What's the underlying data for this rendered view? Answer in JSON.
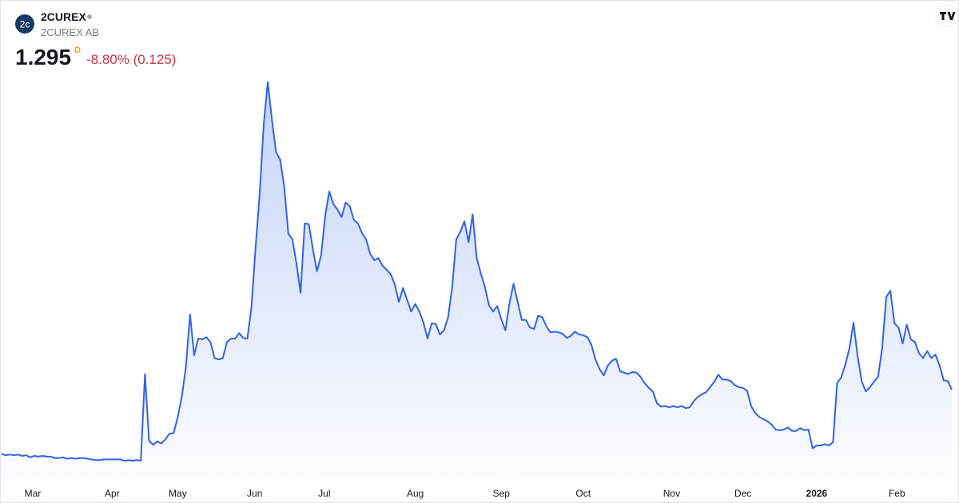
{
  "chart_data": {
    "type": "area",
    "title": "2CUREX",
    "subtitle": "2CUREX AB",
    "logo_text": "2c",
    "price": "1.295",
    "interval": "D",
    "change": "-8.80% (0.125)",
    "color": "#2f63e8",
    "ylim": [
      0,
      6
    ],
    "xlim": [
      0,
      232
    ],
    "xticks": [
      {
        "value": 7.6,
        "label": "Mar"
      },
      {
        "value": 27,
        "label": "Apr"
      },
      {
        "value": 43,
        "label": "May"
      },
      {
        "value": 61.8,
        "label": "Jun"
      },
      {
        "value": 78.8,
        "label": "Jul"
      },
      {
        "value": 101,
        "label": "Aug"
      },
      {
        "value": 122,
        "label": "Sep"
      },
      {
        "value": 142,
        "label": "Oct"
      },
      {
        "value": 163.6,
        "label": "Nov"
      },
      {
        "value": 181,
        "label": "Dec"
      },
      {
        "value": 199,
        "label": "2026",
        "bold": true
      },
      {
        "value": 218.6,
        "label": "Feb"
      }
    ],
    "values": [
      0.37,
      0.35,
      0.36,
      0.35,
      0.36,
      0.34,
      0.35,
      0.32,
      0.34,
      0.33,
      0.34,
      0.33,
      0.33,
      0.31,
      0.31,
      0.32,
      0.3,
      0.31,
      0.3,
      0.31,
      0.31,
      0.3,
      0.29,
      0.28,
      0.28,
      0.29,
      0.29,
      0.29,
      0.29,
      0.29,
      0.27,
      0.28,
      0.27,
      0.28,
      0.27,
      1.52,
      0.56,
      0.5,
      0.55,
      0.52,
      0.58,
      0.66,
      0.67,
      0.9,
      1.19,
      1.62,
      2.38,
      1.79,
      2.03,
      2.02,
      2.05,
      1.98,
      1.75,
      1.73,
      1.75,
      1.98,
      2.03,
      2.03,
      2.11,
      2.04,
      2.03,
      2.48,
      3.34,
      4.11,
      5.12,
      5.73,
      5.18,
      4.72,
      4.61,
      4.23,
      3.54,
      3.46,
      3.11,
      2.69,
      3.69,
      3.68,
      3.32,
      3.0,
      3.23,
      3.8,
      4.15,
      3.97,
      3.89,
      3.78,
      3.99,
      3.94,
      3.74,
      3.69,
      3.55,
      3.46,
      3.25,
      3.16,
      3.19,
      3.08,
      3.02,
      2.96,
      2.81,
      2.56,
      2.76,
      2.59,
      2.42,
      2.53,
      2.42,
      2.26,
      2.03,
      2.25,
      2.24,
      2.09,
      2.15,
      2.33,
      2.77,
      3.46,
      3.57,
      3.72,
      3.42,
      3.82,
      3.19,
      2.97,
      2.77,
      2.51,
      2.42,
      2.5,
      2.31,
      2.15,
      2.54,
      2.82,
      2.56,
      2.3,
      2.3,
      2.19,
      2.17,
      2.36,
      2.34,
      2.21,
      2.12,
      2.13,
      2.12,
      2.1,
      2.04,
      2.07,
      2.13,
      2.09,
      2.08,
      2.05,
      1.94,
      1.73,
      1.59,
      1.5,
      1.64,
      1.71,
      1.74,
      1.56,
      1.54,
      1.52,
      1.55,
      1.54,
      1.48,
      1.39,
      1.32,
      1.27,
      1.1,
      1.05,
      1.06,
      1.04,
      1.06,
      1.04,
      1.06,
      1.03,
      1.04,
      1.13,
      1.19,
      1.23,
      1.26,
      1.33,
      1.41,
      1.51,
      1.44,
      1.44,
      1.42,
      1.36,
      1.33,
      1.32,
      1.28,
      1.06,
      0.96,
      0.9,
      0.87,
      0.84,
      0.79,
      0.72,
      0.71,
      0.72,
      0.75,
      0.7,
      0.7,
      0.74,
      0.71,
      0.72,
      0.45,
      0.49,
      0.49,
      0.51,
      0.49,
      0.54,
      1.39,
      1.47,
      1.66,
      1.89,
      2.26,
      1.78,
      1.41,
      1.27,
      1.33,
      1.41,
      1.48,
      1.9,
      2.63,
      2.72,
      2.25,
      2.19,
      1.96,
      2.23,
      2.02,
      1.98,
      1.82,
      1.75,
      1.85,
      1.75,
      1.8,
      1.65,
      1.43,
      1.42,
      1.295
    ]
  }
}
